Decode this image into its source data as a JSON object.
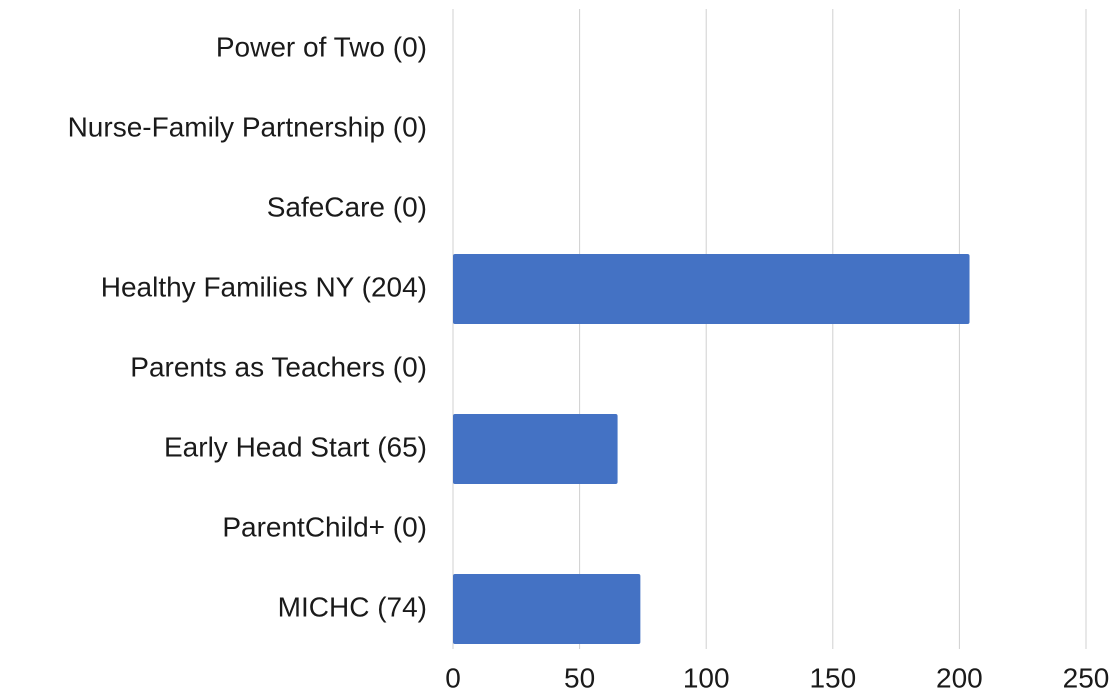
{
  "chart_data": {
    "type": "bar",
    "orientation": "horizontal",
    "categories": [
      "Power of Two (0)",
      "Nurse-Family Partnership (0)",
      "SafeCare (0)",
      "Healthy Families NY (204)",
      "Parents as Teachers (0)",
      "Early Head Start (65)",
      "ParentChild+ (0)",
      "MICHC (74)"
    ],
    "values": [
      0,
      0,
      0,
      204,
      0,
      65,
      0,
      74
    ],
    "color": "#4472c4",
    "xlim": [
      0,
      250
    ],
    "xticks": [
      0,
      50,
      100,
      150,
      200,
      250
    ],
    "grid": true
  }
}
